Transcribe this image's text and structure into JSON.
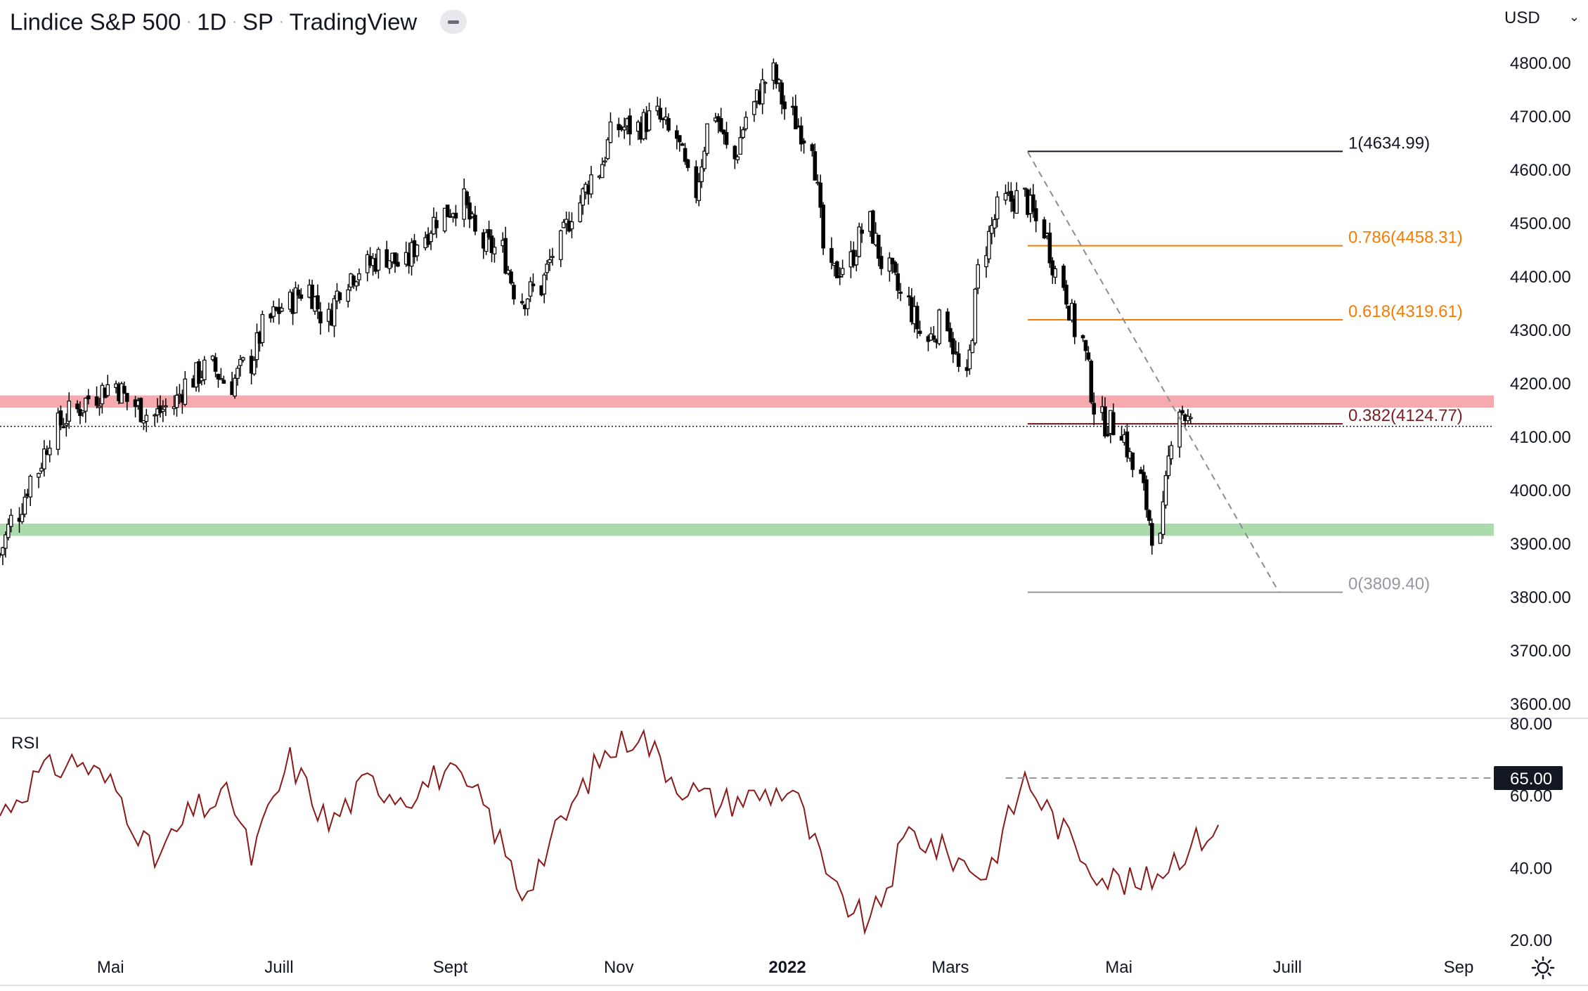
{
  "header": {
    "title": "Lindice S&P 500",
    "interval": "1D",
    "exchange": "SP",
    "source": "TradingView",
    "currency": "USD"
  },
  "icons": {
    "hide": "minus-pill-icon",
    "currency_menu": "chevron-down-icon",
    "settings": "sun-gear-icon"
  },
  "colors": {
    "resistance_zone": "#f7a9b0",
    "support_zone": "#acdbab",
    "fib_top": "#131722",
    "fib_mid": "#f57c00",
    "fib_382": "#7b1c23",
    "fib_zero": "#9598a1",
    "rsi_line": "#8b1a1a",
    "candle": "#000000"
  },
  "chart_data": [
    {
      "type": "candlestick",
      "title": "Lindice S&P 500",
      "ylim": [
        3600,
        4800
      ],
      "y_ticks": [
        "4800.00",
        "4700.00",
        "4600.00",
        "4500.00",
        "4400.00",
        "4300.00",
        "4200.00",
        "4100.00",
        "4000.00",
        "3900.00",
        "3800.00",
        "3700.00",
        "3600.00"
      ],
      "x_ticks": [
        {
          "label": "Mai",
          "date": "2021-05-01"
        },
        {
          "label": "Juill",
          "date": "2021-07-01"
        },
        {
          "label": "Sept",
          "date": "2021-09-01"
        },
        {
          "label": "Nov",
          "date": "2021-11-01"
        },
        {
          "label": "2022",
          "date": "2022-01-01",
          "bold": true
        },
        {
          "label": "Mars",
          "date": "2022-03-01"
        },
        {
          "label": "Mai",
          "date": "2022-05-01"
        },
        {
          "label": "Juill",
          "date": "2022-07-01"
        },
        {
          "label": "Sep",
          "date": "2022-09-01"
        }
      ],
      "x_range": [
        "2021-03-22",
        "2022-09-15"
      ],
      "closes_weekly": [
        [
          "2021-03-22",
          3880
        ],
        [
          "2021-03-29",
          3960
        ],
        [
          "2021-04-05",
          4040
        ],
        [
          "2021-04-12",
          4120
        ],
        [
          "2021-04-19",
          4150
        ],
        [
          "2021-04-26",
          4180
        ],
        [
          "2021-05-03",
          4200
        ],
        [
          "2021-05-10",
          4160
        ],
        [
          "2021-05-17",
          4140
        ],
        [
          "2021-05-24",
          4160
        ],
        [
          "2021-05-31",
          4210
        ],
        [
          "2021-06-07",
          4230
        ],
        [
          "2021-06-14",
          4200
        ],
        [
          "2021-06-21",
          4240
        ],
        [
          "2021-06-28",
          4320
        ],
        [
          "2021-07-05",
          4350
        ],
        [
          "2021-07-12",
          4380
        ],
        [
          "2021-07-19",
          4320
        ],
        [
          "2021-07-26",
          4400
        ],
        [
          "2021-08-02",
          4420
        ],
        [
          "2021-08-09",
          4440
        ],
        [
          "2021-08-16",
          4420
        ],
        [
          "2021-08-23",
          4480
        ],
        [
          "2021-08-30",
          4520
        ],
        [
          "2021-09-06",
          4540
        ],
        [
          "2021-09-13",
          4460
        ],
        [
          "2021-09-20",
          4450
        ],
        [
          "2021-09-27",
          4360
        ],
        [
          "2021-10-04",
          4380
        ],
        [
          "2021-10-11",
          4460
        ],
        [
          "2021-10-18",
          4540
        ],
        [
          "2021-10-25",
          4600
        ],
        [
          "2021-11-01",
          4680
        ],
        [
          "2021-11-08",
          4680
        ],
        [
          "2021-11-15",
          4700
        ],
        [
          "2021-11-22",
          4660
        ],
        [
          "2021-11-29",
          4560
        ],
        [
          "2021-12-06",
          4710
        ],
        [
          "2021-12-13",
          4620
        ],
        [
          "2021-12-20",
          4720
        ],
        [
          "2021-12-27",
          4780
        ],
        [
          "2022-01-03",
          4700
        ],
        [
          "2022-01-10",
          4660
        ],
        [
          "2022-01-17",
          4400
        ],
        [
          "2022-01-24",
          4430
        ],
        [
          "2022-01-31",
          4500
        ],
        [
          "2022-02-07",
          4410
        ],
        [
          "2022-02-14",
          4350
        ],
        [
          "2022-02-21",
          4280
        ],
        [
          "2022-02-28",
          4320
        ],
        [
          "2022-03-07",
          4200
        ],
        [
          "2022-03-14",
          4460
        ],
        [
          "2022-03-21",
          4540
        ],
        [
          "2022-03-28",
          4550
        ],
        [
          "2022-04-04",
          4490
        ],
        [
          "2022-04-11",
          4390
        ],
        [
          "2022-04-18",
          4280
        ],
        [
          "2022-04-25",
          4130
        ],
        [
          "2022-05-02",
          4120
        ],
        [
          "2022-05-09",
          4020
        ],
        [
          "2022-05-16",
          3900
        ],
        [
          "2022-05-23",
          4160
        ],
        [
          "2022-05-30",
          4110
        ]
      ],
      "fibonacci": [
        {
          "label": "1(4634.99)",
          "value": 4634.99,
          "color": "#131722"
        },
        {
          "label": "0.786(4458.31)",
          "value": 4458.31,
          "color": "#f57c00"
        },
        {
          "label": "0.618(4319.61)",
          "value": 4319.61,
          "color": "#f57c00"
        },
        {
          "label": "0.382(4124.77)",
          "value": 4124.77,
          "color": "#7b1c23"
        },
        {
          "label": "0(3809.40)",
          "value": 3809.4,
          "color": "#9598a1"
        }
      ],
      "fib_start_date": "2022-03-29",
      "zones": [
        {
          "name": "resistance",
          "low": 4155,
          "high": 4178,
          "color": "#f7a9b0"
        },
        {
          "name": "support",
          "low": 3915,
          "high": 3938,
          "color": "#acdbab"
        }
      ],
      "last_price_line": 4120,
      "trendline": [
        [
          "2022-03-29",
          4634
        ],
        [
          "2022-06-28",
          3809
        ]
      ]
    },
    {
      "type": "line",
      "title": "RSI",
      "ylim": [
        20,
        80
      ],
      "y_ticks": [
        "80.00",
        "60.00",
        "40.00",
        "20.00"
      ],
      "reference_level": {
        "label": "65.00",
        "value": 65
      },
      "rsi_weekly": [
        [
          "2021-03-22",
          55
        ],
        [
          "2021-04-05",
          66
        ],
        [
          "2021-04-19",
          70
        ],
        [
          "2021-05-03",
          62
        ],
        [
          "2021-05-17",
          42
        ],
        [
          "2021-05-31",
          56
        ],
        [
          "2021-06-14",
          60
        ],
        [
          "2021-06-21",
          43
        ],
        [
          "2021-07-05",
          70
        ],
        [
          "2021-07-19",
          52
        ],
        [
          "2021-08-02",
          64
        ],
        [
          "2021-08-16",
          60
        ],
        [
          "2021-08-30",
          67
        ],
        [
          "2021-09-13",
          58
        ],
        [
          "2021-09-27",
          33
        ],
        [
          "2021-10-11",
          52
        ],
        [
          "2021-10-25",
          70
        ],
        [
          "2021-11-08",
          78
        ],
        [
          "2021-11-22",
          64
        ],
        [
          "2021-12-06",
          58
        ],
        [
          "2021-12-20",
          60
        ],
        [
          "2022-01-03",
          62
        ],
        [
          "2022-01-17",
          34
        ],
        [
          "2022-01-31",
          24
        ],
        [
          "2022-02-14",
          50
        ],
        [
          "2022-02-28",
          44
        ],
        [
          "2022-03-14",
          38
        ],
        [
          "2022-03-28",
          65
        ],
        [
          "2022-04-11",
          50
        ],
        [
          "2022-04-25",
          38
        ],
        [
          "2022-05-09",
          35
        ],
        [
          "2022-05-23",
          44
        ],
        [
          "2022-06-06",
          52
        ]
      ]
    }
  ]
}
